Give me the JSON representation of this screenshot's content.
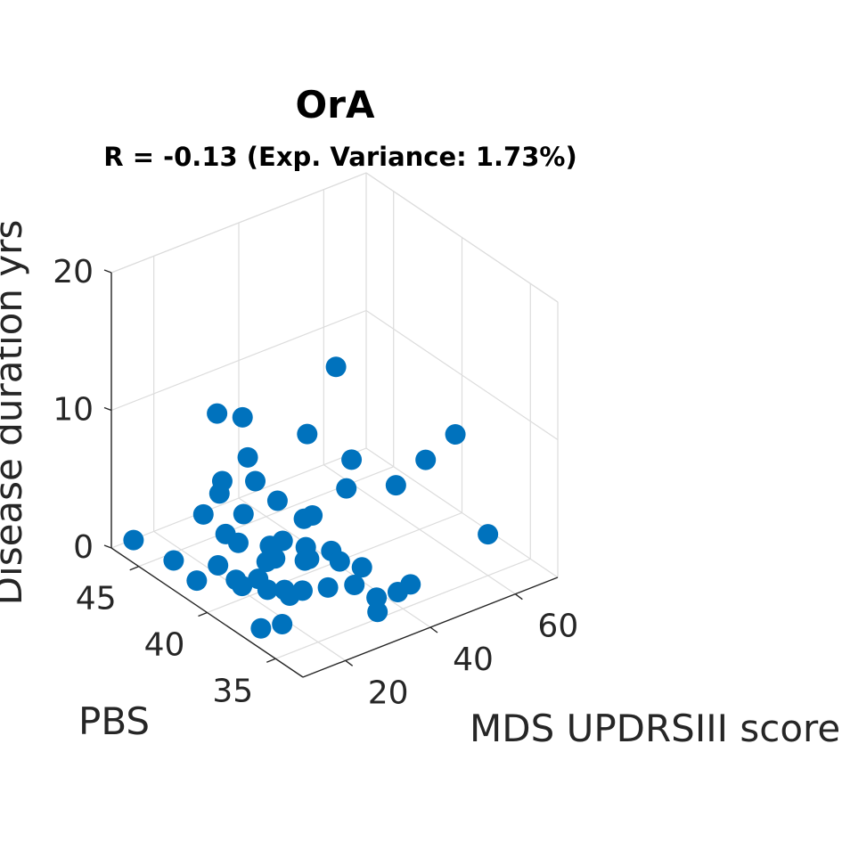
{
  "chart_data": {
    "type": "scatter",
    "title": "OrA",
    "subtitle": "R = -0.13 (Exp. Variance: 1.73%)",
    "xlabel": "MDS UPDRSIII score",
    "ylabel": "PBS",
    "zlabel": "Disease duration yrs",
    "xlim": [
      10,
      70
    ],
    "ylim": [
      33,
      47
    ],
    "zlim": [
      0,
      20
    ],
    "xticks": [
      "20",
      "40",
      "60"
    ],
    "yticks": [
      "35",
      "40",
      "45"
    ],
    "zticks": [
      "0",
      "10",
      "20"
    ],
    "grid": true,
    "marker_color": "#0072BD",
    "points": [
      [
        12,
        46,
        1
      ],
      [
        15,
        44,
        0.5
      ],
      [
        13,
        37,
        0.5
      ],
      [
        18,
        37,
        0.2
      ],
      [
        15,
        39,
        2
      ],
      [
        14,
        42,
        0.5
      ],
      [
        20,
        41,
        0.5
      ],
      [
        22,
        44,
        3
      ],
      [
        24,
        43,
        2
      ],
      [
        25,
        42,
        4
      ],
      [
        22,
        40,
        1
      ],
      [
        19,
        42,
        1
      ],
      [
        21,
        39,
        1
      ],
      [
        26,
        40,
        2
      ],
      [
        23,
        38,
        1
      ],
      [
        24,
        40,
        2
      ],
      [
        25,
        39,
        0.5
      ],
      [
        27,
        43,
        1
      ],
      [
        28,
        41,
        2
      ],
      [
        26,
        38,
        1
      ],
      [
        30,
        39,
        3
      ],
      [
        31,
        41,
        2
      ],
      [
        33,
        40,
        1
      ],
      [
        32,
        38,
        0.5
      ],
      [
        34,
        40,
        1
      ],
      [
        36,
        39,
        2
      ],
      [
        35,
        37,
        1
      ],
      [
        38,
        39,
        1
      ],
      [
        37,
        36,
        0.5
      ],
      [
        40,
        38,
        1
      ],
      [
        36,
        41,
        3
      ],
      [
        34,
        35,
        0.5
      ],
      [
        42,
        36,
        0.3
      ],
      [
        22,
        43,
        11
      ],
      [
        20,
        42,
        7
      ],
      [
        28,
        43,
        10
      ],
      [
        26,
        42,
        8
      ],
      [
        40,
        42,
        8
      ],
      [
        44,
        40,
        7
      ],
      [
        48,
        38,
        6
      ],
      [
        55,
        38,
        7
      ],
      [
        62,
        38,
        8
      ],
      [
        60,
        35,
        3
      ],
      [
        50,
        43,
        11
      ],
      [
        45,
        36,
        0.5
      ],
      [
        38,
        41,
        3
      ],
      [
        31,
        43,
        5
      ],
      [
        46,
        41,
        4
      ],
      [
        33,
        42,
        4
      ],
      [
        29,
        45,
        3
      ]
    ]
  }
}
